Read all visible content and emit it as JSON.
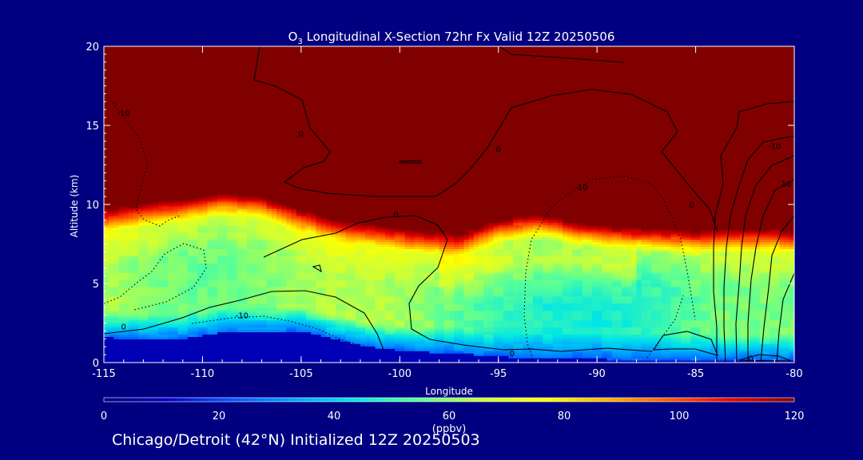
{
  "page": {
    "background": "#000080",
    "footer": "Chicago/Detroit (42°N) Initialized 12Z 20250503"
  },
  "chart_data": {
    "type": "heatmap",
    "title_prefix": "O",
    "title_subscript": "3",
    "title_suffix": " Longitudinal X-Section 72hr  Fx Valid 12Z 20250506",
    "xlabel": "Longitude",
    "ylabel": "Altitude (km)",
    "xlim": [
      -115,
      -80
    ],
    "ylim": [
      0,
      20
    ],
    "xticks": [
      "-115",
      "-110",
      "-105",
      "-100",
      "-95",
      "-90",
      "-85",
      "-80"
    ],
    "xtick_values": [
      -115,
      -110,
      -105,
      -100,
      -95,
      -90,
      -85,
      -80
    ],
    "yticks": [
      "0",
      "5",
      "10",
      "15",
      "20"
    ],
    "ytick_values": [
      0,
      5,
      10,
      15,
      20
    ],
    "colorbar": {
      "label": "(ppbv)",
      "min": 0,
      "max": 120,
      "ticks": [
        "0",
        "20",
        "40",
        "60",
        "80",
        "100",
        "120"
      ],
      "tick_values": [
        0,
        20,
        40,
        60,
        80,
        100,
        120
      ]
    },
    "colormap": [
      "#00007f",
      "#0000c8",
      "#0050ff",
      "#00a0ff",
      "#00e6e6",
      "#5aff96",
      "#c8ff3c",
      "#ffff00",
      "#ffb400",
      "#ff5a00",
      "#e60000",
      "#800000"
    ],
    "tropopause_height_km": {
      "lon": [
        -115,
        -113,
        -111,
        -109,
        -107,
        -105,
        -103,
        -101,
        -99,
        -97,
        -95,
        -93,
        -91,
        -89,
        -87,
        -85,
        -83,
        -81,
        -80
      ],
      "z": [
        9.6,
        9.9,
        10.2,
        10.6,
        10.4,
        9.6,
        8.9,
        8.6,
        8.2,
        8.0,
        8.9,
        9.2,
        8.7,
        8.4,
        8.3,
        8.2,
        8.3,
        8.3,
        8.2
      ]
    },
    "boundary_layer_top_km": {
      "lon": [
        -115,
        -113,
        -111,
        -109,
        -107,
        -105,
        -103,
        -101,
        -99,
        -97,
        -95,
        -93,
        -91,
        -89,
        -87,
        -85,
        -83,
        -81,
        -80
      ],
      "z": [
        1.6,
        1.5,
        1.5,
        1.9,
        1.9,
        2.0,
        1.4,
        0.9,
        0.7,
        0.6,
        0.4,
        0.3,
        0.3,
        0.2,
        0.2,
        0.2,
        0.2,
        0.2,
        0.2
      ]
    },
    "contour_labels": [
      {
        "text": "-10",
        "lon": -114,
        "alt": 15.6
      },
      {
        "text": "0",
        "lon": -105,
        "alt": 14.3
      },
      {
        "text": "0",
        "lon": -95,
        "alt": 13.3
      },
      {
        "text": "-10",
        "lon": -90.8,
        "alt": 10.9
      },
      {
        "text": "0",
        "lon": -85.2,
        "alt": 9.8
      },
      {
        "text": "-10",
        "lon": -81,
        "alt": 13.5
      },
      {
        "text": "10",
        "lon": -80.4,
        "alt": 11.1
      },
      {
        "text": "0",
        "lon": -114,
        "alt": 2.1
      },
      {
        "text": "-10",
        "lon": -108,
        "alt": 2.8
      },
      {
        "text": "0",
        "lon": -100.2,
        "alt": 9.2
      },
      {
        "text": "0",
        "lon": -94.3,
        "alt": 0.4
      },
      {
        "text": "0",
        "lon": -82.2,
        "alt": 0.1
      },
      {
        "text": "0",
        "lon": -95,
        "alt": 20.0
      }
    ]
  }
}
